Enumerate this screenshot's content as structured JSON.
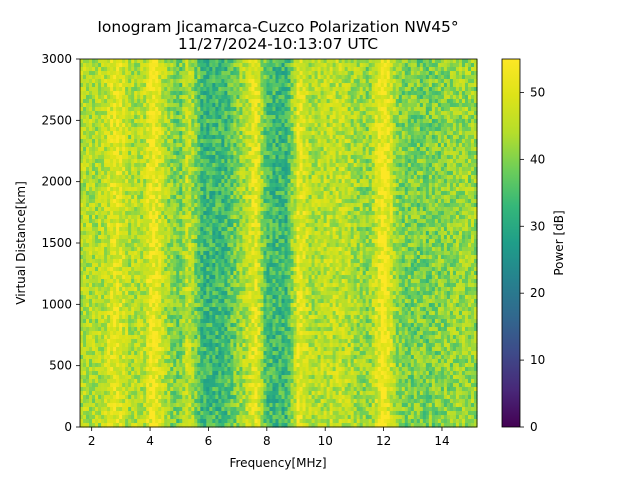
{
  "chart_data": {
    "type": "heatmap",
    "title": "Ionogram Jicamarca-Cuzco Polarization NW45°",
    "subtitle": "11/27/2024-10:13:07 UTC",
    "xlabel": "Frequency[MHz]",
    "ylabel": "Virtual Distance[km]",
    "xlim": [
      1.6,
      15.2
    ],
    "ylim": [
      0,
      3000
    ],
    "xticks": [
      2,
      4,
      6,
      8,
      10,
      12,
      14
    ],
    "yticks": [
      0,
      500,
      1000,
      1500,
      2000,
      2500,
      3000
    ],
    "colorbar": {
      "label": "Power [dB]",
      "range": [
        0,
        55
      ],
      "ticks": [
        0,
        10,
        20,
        30,
        40,
        50
      ],
      "colormap": "viridis"
    },
    "grid": false,
    "frequency_profile_db": [
      {
        "freq": 1.6,
        "power": 44
      },
      {
        "freq": 2.3,
        "power": 44
      },
      {
        "freq": 2.85,
        "power": 51
      },
      {
        "freq": 3.3,
        "power": 44
      },
      {
        "freq": 3.8,
        "power": 45
      },
      {
        "freq": 4.1,
        "power": 54
      },
      {
        "freq": 4.5,
        "power": 44
      },
      {
        "freq": 5.0,
        "power": 38
      },
      {
        "freq": 5.3,
        "power": 47
      },
      {
        "freq": 5.8,
        "power": 33
      },
      {
        "freq": 6.6,
        "power": 34
      },
      {
        "freq": 7.3,
        "power": 45
      },
      {
        "freq": 7.65,
        "power": 52
      },
      {
        "freq": 8.0,
        "power": 34
      },
      {
        "freq": 8.7,
        "power": 33
      },
      {
        "freq": 9.1,
        "power": 52
      },
      {
        "freq": 9.5,
        "power": 44
      },
      {
        "freq": 10.5,
        "power": 46
      },
      {
        "freq": 11.5,
        "power": 41
      },
      {
        "freq": 12.0,
        "power": 55
      },
      {
        "freq": 12.5,
        "power": 40
      },
      {
        "freq": 13.5,
        "power": 39
      },
      {
        "freq": 14.5,
        "power": 42
      },
      {
        "freq": 15.2,
        "power": 42
      }
    ]
  }
}
